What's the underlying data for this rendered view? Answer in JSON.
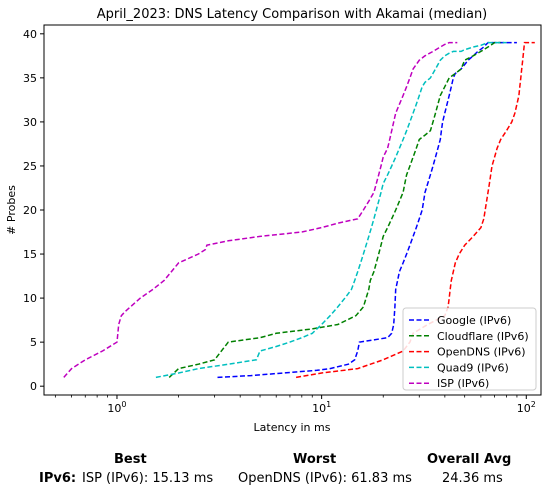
{
  "chart_data": {
    "type": "line",
    "title": "April_2023: DNS Latency Comparison with Akamai (median)",
    "xlabel": "Latency in ms",
    "ylabel": "# Probes",
    "xscale": "log",
    "xlim": [
      0.44,
      118
    ],
    "ylim": [
      -1,
      41
    ],
    "xticks": [
      1,
      10,
      100
    ],
    "xtick_labels": [
      "10^0",
      "10^1",
      "10^2"
    ],
    "yticks": [
      0,
      5,
      10,
      15,
      20,
      25,
      30,
      35,
      40
    ],
    "grid": false,
    "legend_position": "bottom-right",
    "series": [
      {
        "name": "Google (IPv6)",
        "color": "#0000ff",
        "x": [
          3.1,
          4.5,
          6.5,
          9.5,
          11,
          13.5,
          14.5,
          15,
          15.3,
          21,
          22,
          22.5,
          22.8,
          23,
          23.5,
          24,
          25,
          26,
          27,
          28,
          29,
          30,
          31,
          31.5,
          32,
          33,
          34,
          35,
          36,
          37,
          38,
          38.5,
          39,
          40,
          41,
          42,
          43,
          44,
          45,
          48,
          52,
          55,
          58,
          62,
          65,
          68,
          72,
          75,
          80,
          85,
          90
        ],
        "y": [
          1,
          1.2,
          1.5,
          1.8,
          2,
          2.5,
          3,
          4,
          5,
          5.5,
          6,
          7,
          9,
          11,
          12,
          13,
          14,
          15,
          16,
          17,
          18,
          19,
          20,
          21,
          22,
          23,
          24,
          25,
          26,
          27,
          28,
          29,
          30,
          31,
          32,
          33,
          34,
          35,
          35.5,
          36,
          37,
          37.5,
          38,
          38.5,
          39,
          39,
          39,
          39,
          39,
          39,
          39
        ]
      },
      {
        "name": "Cloudflare (IPv6)",
        "color": "#008000",
        "x": [
          1.8,
          2,
          2.5,
          3,
          3.5,
          5,
          6,
          9,
          12,
          14.7,
          16,
          16.5,
          17,
          17.3,
          18,
          18.5,
          19,
          19.5,
          20,
          21,
          22,
          23,
          24,
          25,
          25.5,
          26,
          27,
          28,
          29,
          30,
          32,
          34,
          35,
          36,
          37,
          38,
          40,
          42,
          45,
          48,
          50,
          55,
          60,
          65,
          70,
          75
        ],
        "y": [
          1,
          2,
          2.5,
          3,
          5,
          5.5,
          6,
          6.5,
          7,
          8,
          9,
          10,
          11,
          12,
          13,
          14,
          15,
          16,
          17,
          18,
          19,
          20,
          21,
          22,
          23,
          24,
          25,
          26,
          27,
          28,
          28.5,
          29,
          30,
          31,
          32,
          33,
          34,
          35,
          35.5,
          36,
          37,
          37.5,
          38,
          38.5,
          39,
          39
        ]
      },
      {
        "name": "OpenDNS (IPv6)",
        "color": "#ff0000",
        "x": [
          7.5,
          10,
          15,
          20,
          25,
          27,
          28,
          33,
          40,
          41.5,
          42,
          42.5,
          43,
          44,
          45,
          47,
          50,
          55,
          60,
          62,
          63,
          64,
          65,
          66,
          67,
          68,
          70,
          72,
          75,
          80,
          85,
          88,
          90,
          92,
          93,
          94,
          95,
          96,
          97,
          98,
          99,
          100,
          101,
          102,
          103,
          104,
          105,
          107,
          110
        ],
        "y": [
          1,
          1.5,
          2,
          3,
          4,
          5,
          6,
          7,
          8,
          9,
          10,
          11,
          12,
          13,
          14,
          15,
          16,
          17,
          18,
          19,
          20,
          21,
          22,
          23,
          24,
          25,
          26,
          27,
          28,
          29,
          30,
          31,
          32,
          33,
          34,
          35,
          36,
          37,
          38,
          39,
          39,
          39,
          39,
          39,
          39,
          39,
          39,
          39,
          39
        ]
      },
      {
        "name": "Quad9 (IPv6)",
        "color": "#00bfbf",
        "x": [
          1.55,
          2,
          2.5,
          3.5,
          4.8,
          5,
          6,
          7,
          8,
          9,
          10,
          11,
          12,
          13,
          14,
          14.5,
          15,
          15.5,
          16,
          16.5,
          17,
          17.5,
          18,
          18.5,
          19,
          19.5,
          20,
          21,
          22,
          23,
          24,
          25,
          26,
          27,
          28,
          29,
          30,
          31,
          32,
          34,
          36,
          38,
          40,
          42,
          44,
          46,
          48,
          50,
          55,
          60,
          65,
          70,
          75,
          80
        ],
        "y": [
          1,
          1.5,
          2,
          2.5,
          3,
          4,
          4.5,
          5,
          5.5,
          6,
          7,
          8,
          9,
          10,
          11,
          12,
          13,
          14,
          15,
          16,
          17,
          18,
          19,
          20,
          21,
          22,
          23,
          24,
          25,
          26,
          27,
          28,
          29,
          30,
          31,
          32,
          33,
          34,
          34.5,
          35,
          36,
          37,
          37.5,
          37.8,
          38,
          38,
          38,
          38.2,
          38.5,
          38.7,
          39,
          39,
          39,
          39
        ]
      },
      {
        "name": "ISP (IPv6)",
        "color": "#bf00bf",
        "x": [
          0.55,
          0.6,
          0.7,
          0.85,
          1,
          1.02,
          1.05,
          1.1,
          1.3,
          1.5,
          1.7,
          2.0,
          2.5,
          2.7,
          2.75,
          3.5,
          5,
          8,
          10,
          12,
          15,
          16,
          17,
          18,
          18.5,
          19,
          19.5,
          20,
          21,
          21.5,
          22,
          22.5,
          23,
          24,
          25,
          26,
          27,
          28,
          30,
          32,
          35,
          38,
          40,
          42,
          44,
          46
        ],
        "y": [
          1,
          2,
          3,
          4,
          5,
          7,
          8,
          8.5,
          10,
          11,
          12,
          14,
          15,
          15.5,
          16,
          16.5,
          17,
          17.5,
          18,
          18.5,
          19,
          20,
          21,
          22,
          23,
          24,
          25,
          26,
          27,
          28,
          29,
          30,
          31,
          32,
          33,
          34,
          35,
          36,
          37,
          37.5,
          38,
          38.5,
          38.8,
          39,
          39,
          39
        ]
      }
    ]
  },
  "summary": {
    "headers": {
      "best": "Best",
      "worst": "Worst",
      "avg": "Overall Avg"
    },
    "row_label": "IPv6:",
    "best": "ISP (IPv6): 15.13 ms",
    "worst": "OpenDNS (IPv6): 61.83 ms",
    "avg": "24.36 ms"
  }
}
